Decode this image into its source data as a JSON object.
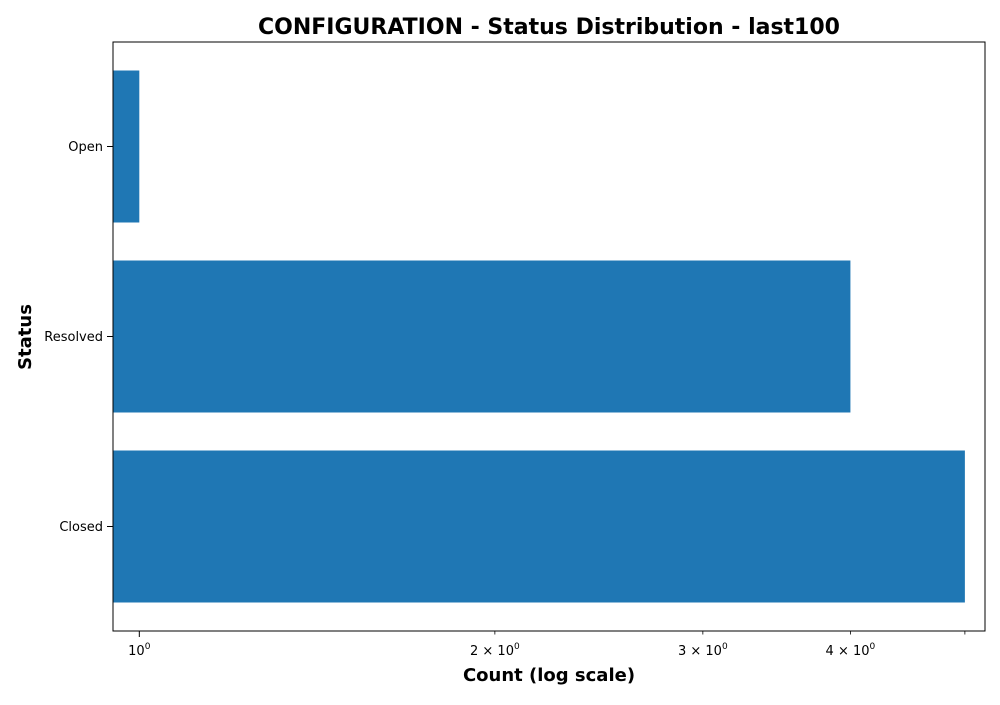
{
  "chart_data": {
    "type": "bar",
    "orientation": "horizontal",
    "title": "CONFIGURATION - Status Distribution - last100",
    "xlabel": "Count (log scale)",
    "ylabel": "Status",
    "x_scale": "log",
    "xlim": [
      0.95,
      5.2
    ],
    "categories": [
      "Closed",
      "Resolved",
      "Open"
    ],
    "values": [
      5,
      4,
      1
    ],
    "bar_color": "#1f77b4",
    "grid": false,
    "major_ticks": [
      {
        "value": 1,
        "label": "10",
        "exp": "0"
      }
    ],
    "minor_ticks": [
      {
        "value": 2,
        "label": "2 × 10",
        "exp": "0"
      },
      {
        "value": 3,
        "label": "3 × 10",
        "exp": "0"
      },
      {
        "value": 4,
        "label": "4 × 10",
        "exp": "0"
      },
      {
        "value": 5,
        "label": "",
        "exp": ""
      }
    ]
  }
}
